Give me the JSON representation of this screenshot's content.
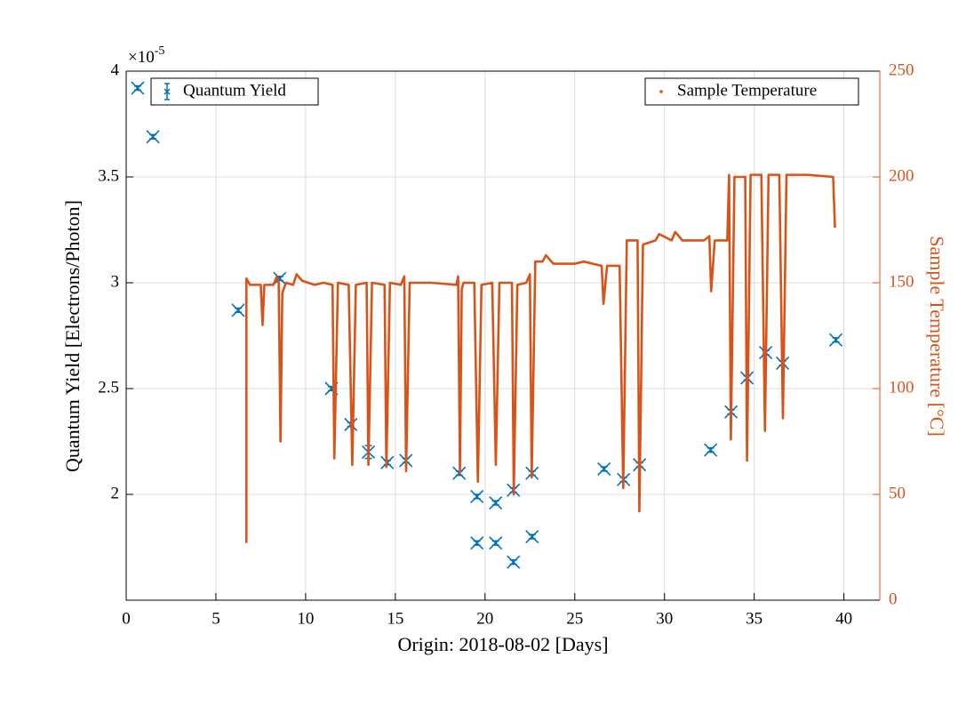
{
  "chart_data": {
    "type": "scatter",
    "xlabel": "Origin: 2018-08-02 [Days]",
    "ylabel": "Quantum Yield [Electrons/Photon]",
    "y2label": "Sample Temperature [°C]",
    "y_multiplier": {
      "base": "×10",
      "exponent": "-5"
    },
    "xlim": [
      0,
      42
    ],
    "xticks": [
      0,
      5,
      10,
      15,
      20,
      25,
      30,
      35,
      40
    ],
    "ylim": [
      1.5,
      4
    ],
    "yticks": [
      2,
      2.5,
      3,
      3.5,
      4
    ],
    "y2lim": [
      0,
      250
    ],
    "y2ticks": [
      0,
      50,
      100,
      150,
      200,
      250
    ],
    "grid": true,
    "series": [
      {
        "name": "Quantum Yield",
        "color": "#0072bd",
        "legend": "upper left",
        "x": [
          0.64,
          1.49,
          6.24,
          8.56,
          11.44,
          12.52,
          13.5,
          14.55,
          15.59,
          18.56,
          19.55,
          19.55,
          20.59,
          20.59,
          21.58,
          21.58,
          22.62,
          22.62,
          26.63,
          27.72,
          28.61,
          32.57,
          33.71,
          34.6,
          35.64,
          36.58,
          39.55
        ],
        "values": [
          3.92,
          3.69,
          2.87,
          3.02,
          2.5,
          2.33,
          2.2,
          2.15,
          2.16,
          2.1,
          1.99,
          1.77,
          1.96,
          1.77,
          2.02,
          1.68,
          2.1,
          1.8,
          2.12,
          2.07,
          2.14,
          2.21,
          2.39,
          2.55,
          2.67,
          2.62,
          2.73
        ],
        "errors": [
          0.01,
          0.01,
          0.01,
          0.01,
          0.01,
          0.01,
          0.03,
          0.01,
          0.01,
          0.01,
          0.01,
          0.01,
          0.01,
          0.01,
          0.01,
          0.01,
          0.01,
          0.01,
          0.01,
          0.01,
          0.01,
          0.01,
          0.01,
          0.01,
          0.01,
          0.01,
          0.01
        ]
      },
      {
        "name": "Sample Temperature",
        "color": "#d95319",
        "axis": "y2",
        "legend": "upper right",
        "type": "line",
        "x": [
          6.7,
          6.7,
          6.9,
          7.5,
          7.6,
          7.7,
          8.2,
          8.4,
          8.5,
          8.6,
          8.7,
          8.9,
          9.3,
          9.5,
          9.8,
          10.5,
          11,
          11.5,
          11.6,
          11.8,
          12.4,
          12.6,
          12.8,
          13.4,
          13.5,
          13.7,
          14.4,
          14.5,
          14.7,
          15.3,
          15.5,
          15.6,
          15.8,
          17,
          18.4,
          18.5,
          18.6,
          18.7,
          18.8,
          19.4,
          19.6,
          19.8,
          20.4,
          20.6,
          20.8,
          21.5,
          21.6,
          21.8,
          22.3,
          22.5,
          22.6,
          22.8,
          23.2,
          23.4,
          23.8,
          25,
          25.5,
          26.5,
          26.6,
          26.8,
          27.5,
          27.7,
          27.9,
          28.5,
          28.6,
          28.8,
          29.5,
          29.7,
          30.4,
          30.6,
          31,
          32.2,
          32.5,
          32.6,
          32.8,
          33.5,
          33.6,
          33.7,
          33.9,
          34.5,
          34.6,
          34.8,
          35.4,
          35.6,
          35.8,
          36.4,
          36.6,
          36.8,
          38,
          39.4,
          39.5
        ],
        "values": [
          27,
          152,
          149,
          149,
          130,
          149,
          149,
          153,
          150,
          75,
          145,
          150,
          149,
          154,
          151,
          149,
          150,
          149,
          67,
          150,
          149,
          64,
          149,
          150,
          64,
          150,
          149,
          63,
          150,
          149,
          153,
          61,
          150,
          150,
          149,
          153,
          60,
          147,
          150,
          150,
          56,
          149,
          150,
          64,
          150,
          150,
          50,
          149,
          150,
          154,
          58,
          160,
          160,
          163,
          159,
          159,
          160,
          158,
          140,
          158,
          158,
          53,
          170,
          170,
          42,
          168,
          170,
          173,
          170,
          174,
          170,
          170,
          172,
          146,
          170,
          170,
          201,
          76,
          200,
          200,
          66,
          201,
          201,
          80,
          201,
          201,
          86,
          201,
          201,
          200,
          176
        ]
      }
    ]
  }
}
